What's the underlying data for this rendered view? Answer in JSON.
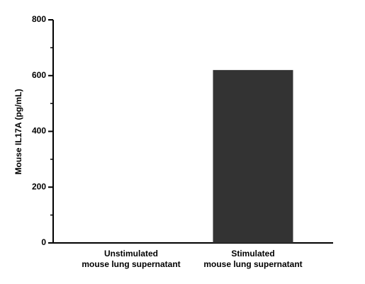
{
  "chart_data": {
    "type": "bar",
    "y_label": "Mouse IL17A (pg/mL)",
    "categories": [
      "Unstimulated\nmouse lung supernatant",
      "Stimulated\nmouse lung supernatant"
    ],
    "values": [
      0,
      620
    ],
    "color": "#333333",
    "ylim": [
      0,
      800
    ],
    "yticks": [
      0,
      200,
      400,
      600,
      800
    ],
    "minor_yticks": [
      100,
      300,
      500,
      700
    ],
    "grid": false
  }
}
